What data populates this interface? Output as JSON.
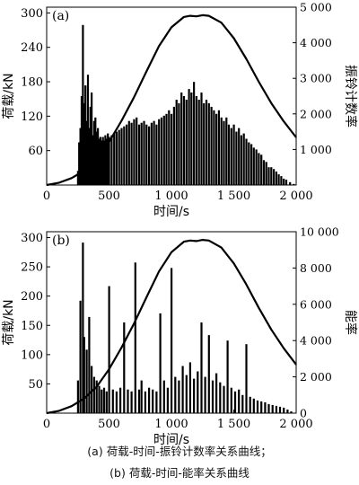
{
  "chart_data": [
    {
      "type": "bar",
      "panel_label": "(a)",
      "xlabel": "时间/s",
      "ylabel": "荷载/kN",
      "y2label": "振铃计数率",
      "xlim": [
        0,
        2000
      ],
      "ylim": [
        0,
        310
      ],
      "y2lim": [
        0,
        5000
      ],
      "x_ticks": [
        0,
        500,
        1000,
        1500,
        2000
      ],
      "x_tick_labels": [
        "0",
        "500",
        "1 000",
        "1 500",
        "2 000"
      ],
      "y_ticks": [
        60,
        120,
        180,
        240,
        300
      ],
      "y_tick_labels": [
        "60",
        "120",
        "180",
        "240",
        "300"
      ],
      "y2_ticks": [
        1000,
        2000,
        3000,
        4000,
        5000
      ],
      "y2_tick_labels": [
        "1 000",
        "2 000",
        "3 000",
        "4 000",
        "5 000"
      ],
      "grid": false,
      "series": [
        {
          "kind": "line",
          "axis": "left",
          "x": [
            0,
            100,
            200,
            300,
            400,
            500,
            600,
            700,
            800,
            900,
            1000,
            1100,
            1150,
            1200,
            1250,
            1300,
            1400,
            1500,
            1600,
            1700,
            1800,
            1900,
            2000
          ],
          "values": [
            0,
            4,
            12,
            25,
            45,
            75,
            112,
            153,
            198,
            242,
            275,
            293,
            295,
            294,
            296,
            295,
            283,
            256,
            220,
            180,
            143,
            111,
            83
          ]
        },
        {
          "kind": "bars",
          "axis": "right",
          "x": [
            250,
            260,
            270,
            280,
            290,
            300,
            310,
            320,
            330,
            340,
            350,
            360,
            370,
            380,
            390,
            400,
            410,
            420,
            430,
            440,
            450,
            460,
            470,
            480,
            490,
            500,
            520,
            540,
            560,
            580,
            600,
            620,
            640,
            660,
            680,
            700,
            720,
            740,
            760,
            780,
            800,
            820,
            840,
            860,
            880,
            900,
            920,
            940,
            960,
            980,
            1000,
            1020,
            1040,
            1060,
            1080,
            1100,
            1120,
            1140,
            1160,
            1180,
            1200,
            1220,
            1240,
            1260,
            1280,
            1300,
            1320,
            1340,
            1360,
            1380,
            1400,
            1420,
            1440,
            1460,
            1480,
            1500,
            1520,
            1540,
            1560,
            1580,
            1600,
            1620,
            1640,
            1660,
            1680,
            1700,
            1720,
            1740,
            1760,
            1780,
            1800,
            1820,
            1840,
            1860,
            1880,
            1900,
            1920,
            1950,
            1980
          ],
          "values": [
            400,
            1200,
            1600,
            2500,
            4500,
            2300,
            2800,
            1800,
            3100,
            1600,
            2200,
            2600,
            1400,
            1800,
            1900,
            1500,
            1600,
            1300,
            1350,
            1250,
            1350,
            1250,
            1400,
            1300,
            1450,
            1350,
            1400,
            1450,
            1500,
            1550,
            1600,
            1650,
            1700,
            1800,
            1750,
            1850,
            1900,
            1700,
            1750,
            1800,
            1700,
            1650,
            1750,
            1800,
            1700,
            1850,
            1900,
            1950,
            2000,
            2100,
            2000,
            2200,
            2400,
            2300,
            2600,
            2500,
            2400,
            2700,
            2600,
            2900,
            2500,
            2400,
            2600,
            2300,
            2400,
            2300,
            2200,
            2100,
            2000,
            2100,
            1900,
            1800,
            1900,
            1700,
            1600,
            1700,
            1500,
            1600,
            1400,
            1450,
            1300,
            1200,
            1150,
            1050,
            1000,
            900,
            850,
            700,
            650,
            500,
            500,
            450,
            380,
            300,
            250,
            180,
            150,
            80,
            30
          ]
        }
      ]
    },
    {
      "type": "bar",
      "panel_label": "(b)",
      "xlabel": "时间/s",
      "ylabel": "荷载/kN",
      "y2label": "能率",
      "xlim": [
        0,
        2000
      ],
      "ylim": [
        0,
        310
      ],
      "y2lim": [
        0,
        10000
      ],
      "x_ticks": [
        0,
        500,
        1000,
        1500,
        2000
      ],
      "x_tick_labels": [
        "0",
        "500",
        "1 000",
        "1 500",
        "2 000"
      ],
      "y_ticks": [
        50,
        100,
        150,
        200,
        250,
        300
      ],
      "y_tick_labels": [
        "50",
        "100",
        "150",
        "200",
        "250",
        "300"
      ],
      "y2_ticks": [
        0,
        2000,
        4000,
        6000,
        8000,
        10000
      ],
      "y2_tick_labels": [
        "0",
        "2 000",
        "4 000",
        "6 000",
        "8 000",
        "10 000"
      ],
      "grid": false,
      "series": [
        {
          "kind": "line",
          "axis": "left",
          "x": [
            0,
            100,
            200,
            300,
            400,
            500,
            600,
            700,
            800,
            900,
            1000,
            1100,
            1150,
            1200,
            1250,
            1300,
            1400,
            1500,
            1600,
            1700,
            1800,
            1900,
            2000
          ],
          "values": [
            0,
            4,
            12,
            25,
            45,
            75,
            112,
            153,
            198,
            242,
            275,
            293,
            295,
            294,
            296,
            295,
            283,
            256,
            220,
            180,
            143,
            111,
            83
          ]
        },
        {
          "kind": "bars",
          "axis": "right",
          "x": [
            250,
            270,
            290,
            300,
            320,
            340,
            360,
            380,
            400,
            420,
            440,
            460,
            480,
            500,
            530,
            560,
            590,
            620,
            650,
            680,
            710,
            740,
            760,
            790,
            820,
            850,
            880,
            910,
            940,
            970,
            1000,
            1030,
            1060,
            1090,
            1120,
            1150,
            1180,
            1210,
            1240,
            1270,
            1300,
            1330,
            1360,
            1390,
            1420,
            1450,
            1480,
            1510,
            1540,
            1570,
            1600,
            1630,
            1660,
            1690,
            1720,
            1750,
            1780,
            1810,
            1840,
            1870,
            1900,
            1930,
            1960
          ],
          "values": [
            1800,
            6200,
            9400,
            4200,
            3500,
            5300,
            2600,
            2000,
            1800,
            1500,
            1300,
            1400,
            1200,
            7000,
            1300,
            1200,
            1400,
            5000,
            1300,
            1200,
            8300,
            1300,
            1800,
            1200,
            1400,
            1300,
            1200,
            5500,
            1800,
            1400,
            8000,
            2000,
            1800,
            2600,
            2100,
            2800,
            1900,
            2300,
            5000,
            2000,
            4300,
            1800,
            2200,
            1700,
            1500,
            4000,
            1400,
            1200,
            1300,
            1000,
            3800,
            900,
            800,
            700,
            650,
            600,
            500,
            450,
            400,
            350,
            300,
            200,
            100
          ]
        }
      ]
    }
  ],
  "captions": [
    {
      "label": "(a)",
      "text": "荷载-时间-振铃计数率关系曲线；"
    },
    {
      "label": "(b)",
      "text": "荷载-时间-能率关系曲线"
    }
  ]
}
